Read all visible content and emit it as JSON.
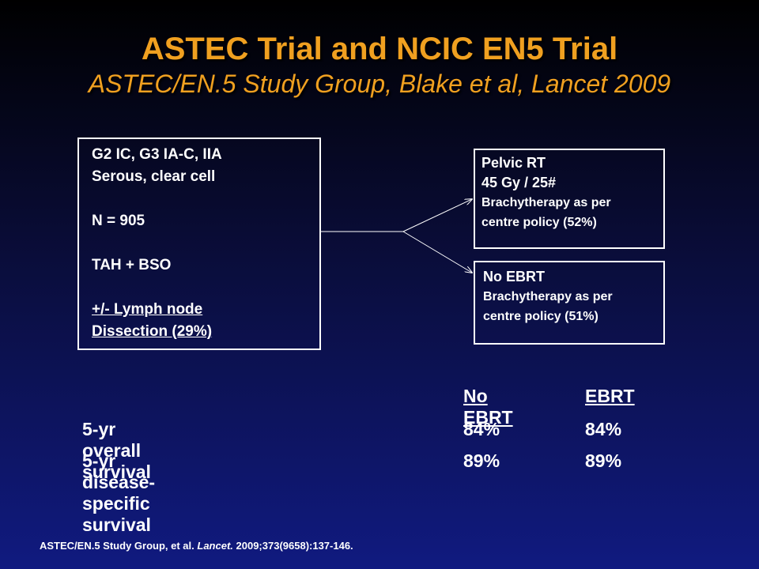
{
  "title": "ASTEC Trial and NCIC EN5 Trial",
  "subtitle": "ASTEC/EN.5 Study Group, Blake et al, Lancet 2009",
  "population_box": {
    "line1": "G2 IC, G3 IA-C, IIA",
    "line2": "Serous, clear cell",
    "line3": "N = 905",
    "line4": "TAH + BSO",
    "line5": "+/- Lymph node",
    "line6": "Dissection (29%)"
  },
  "arm_rt": {
    "line1": "Pelvic RT",
    "line2": "45 Gy / 25#",
    "line3": "Brachytherapy as per",
    "line4": "centre policy  (52%)"
  },
  "arm_no_ebrt": {
    "line1": "No EBRT",
    "line2": "Brachytherapy as per",
    "line3": "centre policy  (51%)"
  },
  "results": {
    "headers": [
      "No EBRT",
      "EBRT"
    ],
    "rows": [
      {
        "label": "5-yr overall survival",
        "no_ebrt": "84%",
        "ebrt": "84%"
      },
      {
        "label": "5-yr disease-specific survival",
        "no_ebrt": "89%",
        "ebrt": "89%"
      }
    ]
  },
  "footer": {
    "prefix": "ASTEC/EN.5 Study Group, et al. ",
    "journal": "Lancet.",
    "citation": " 2009;373(9658):137-146."
  },
  "colors": {
    "title": "#f0a020",
    "text": "#ffffff",
    "background_top": "#000000",
    "background_bottom": "#101a80"
  }
}
